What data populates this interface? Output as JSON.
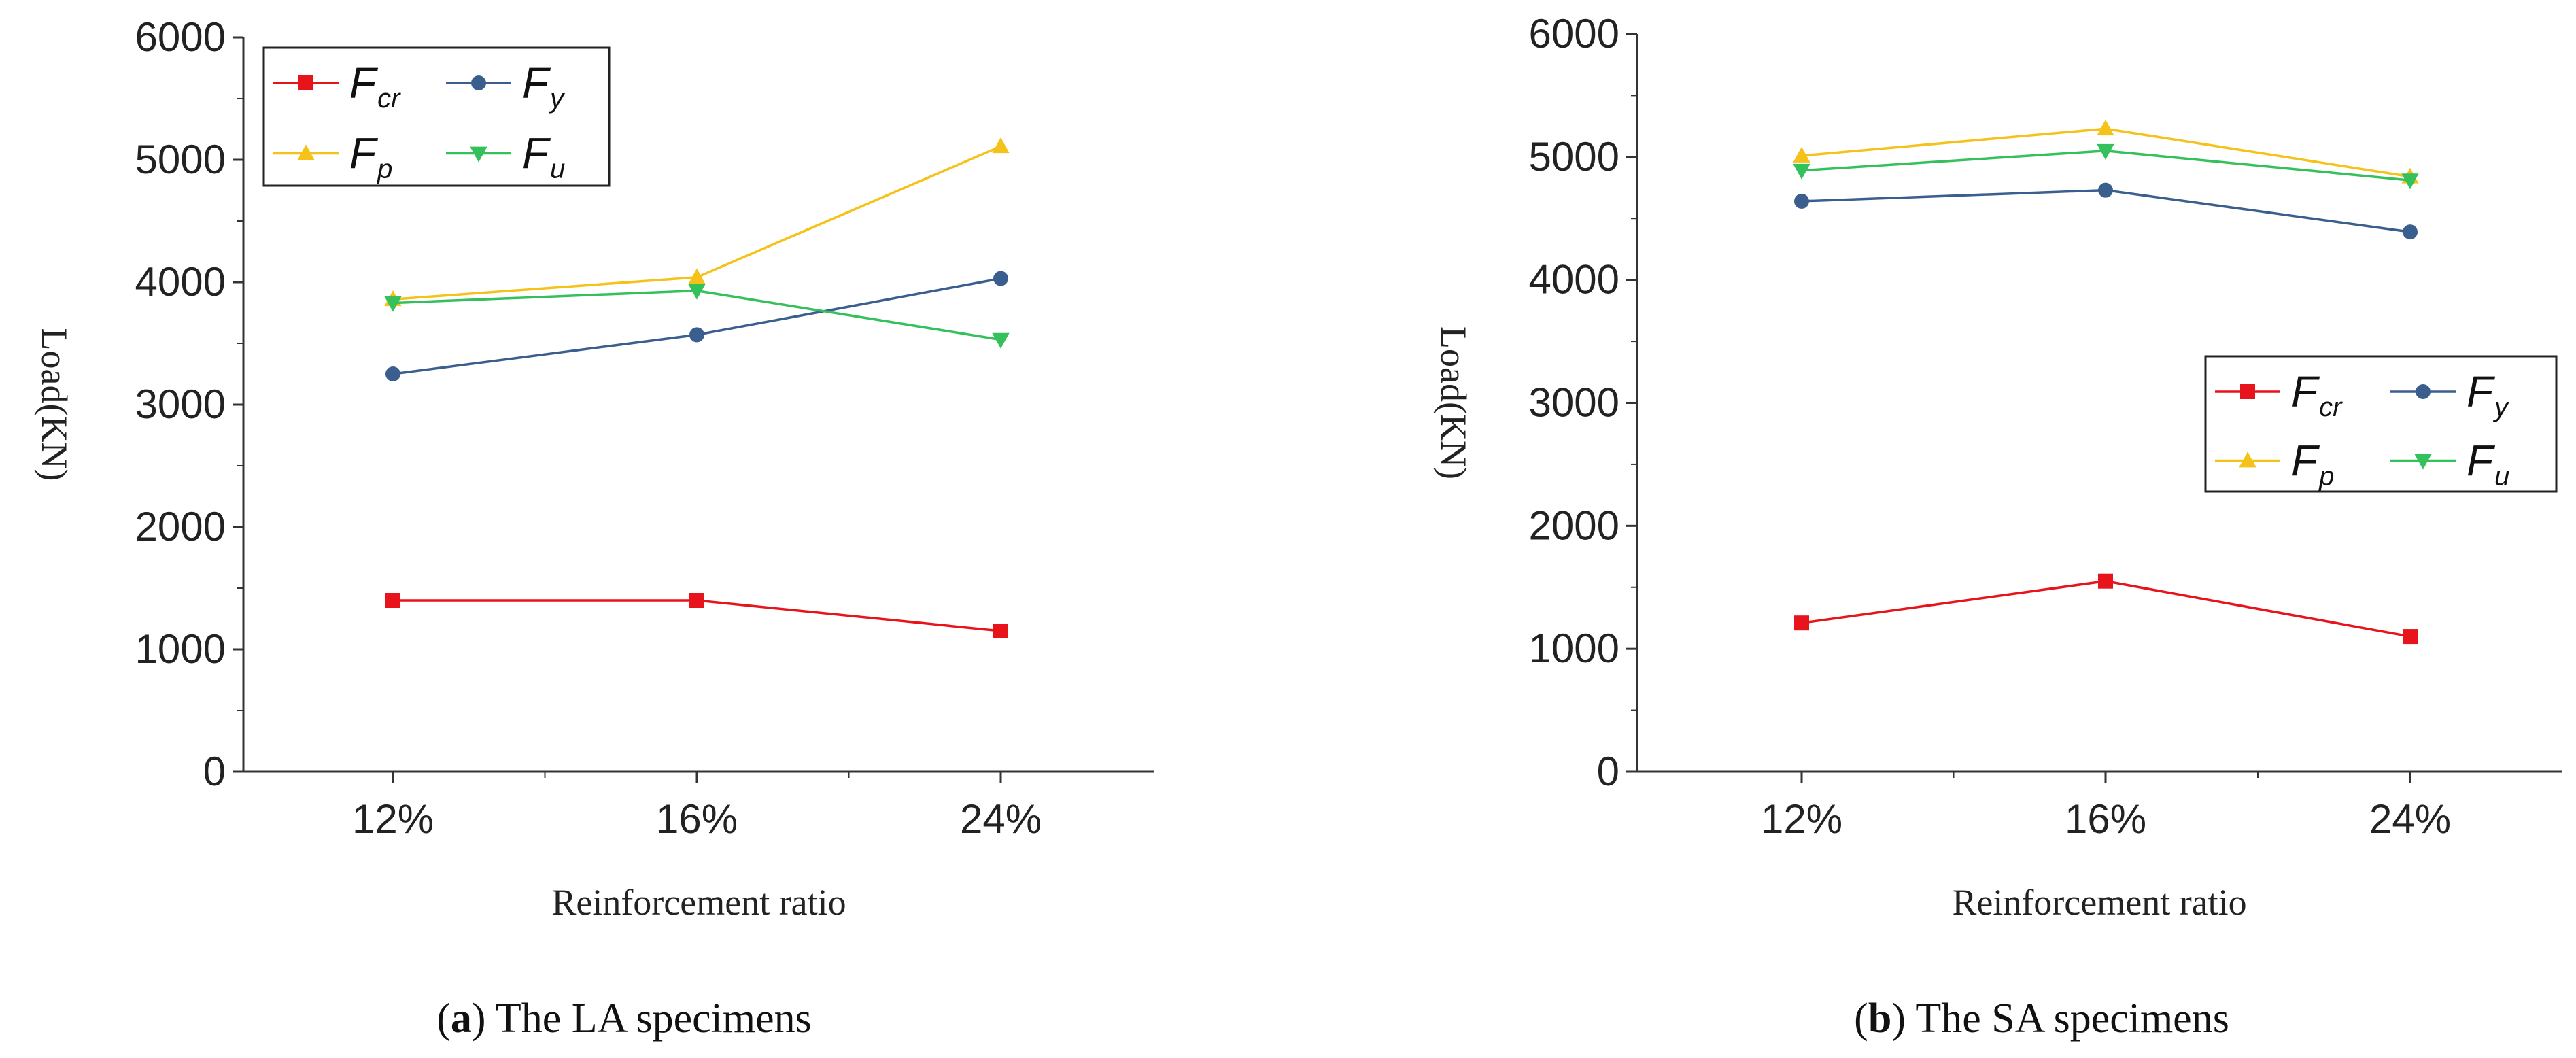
{
  "chart_data": [
    {
      "type": "line",
      "panel_letter": "a",
      "caption": ") The LA specimens",
      "categories": [
        "12%",
        "16%",
        "24%"
      ],
      "xlabel": "Reinforcement ratio",
      "ylabel": "Load(KN)",
      "ylim": [
        0,
        6000
      ],
      "yticks": [
        "0",
        "1000",
        "2000",
        "3000",
        "4000",
        "5000",
        "6000"
      ],
      "legend_position": "top-left",
      "series": [
        {
          "name": "F",
          "sub": "cr",
          "color": "#e8141c",
          "marker": "square",
          "values": [
            1400,
            1400,
            1150
          ]
        },
        {
          "name": "F",
          "sub": "y",
          "color": "#3a5f8f",
          "marker": "circle",
          "values": [
            3250,
            3570,
            4030
          ]
        },
        {
          "name": "F",
          "sub": "p",
          "color": "#f5c21a",
          "marker": "triangle-up",
          "values": [
            3860,
            4040,
            5110
          ]
        },
        {
          "name": "F",
          "sub": "u",
          "color": "#34c05a",
          "marker": "triangle-down",
          "values": [
            3830,
            3930,
            3530
          ]
        }
      ]
    },
    {
      "type": "line",
      "panel_letter": "b",
      "caption": ") The SA specimens",
      "categories": [
        "12%",
        "16%",
        "24%"
      ],
      "xlabel": "Reinforcement ratio",
      "ylabel": "Load(KN)",
      "ylim": [
        0,
        6000
      ],
      "yticks": [
        "0",
        "1000",
        "2000",
        "3000",
        "4000",
        "5000",
        "6000"
      ],
      "legend_position": "center-right",
      "series": [
        {
          "name": "F",
          "sub": "cr",
          "color": "#e8141c",
          "marker": "square",
          "values": [
            1210,
            1550,
            1100
          ]
        },
        {
          "name": "F",
          "sub": "y",
          "color": "#3a5f8f",
          "marker": "circle",
          "values": [
            4640,
            4730,
            4390
          ]
        },
        {
          "name": "F",
          "sub": "p",
          "color": "#f5c21a",
          "marker": "triangle-up",
          "values": [
            5010,
            5230,
            4840
          ]
        },
        {
          "name": "F",
          "sub": "u",
          "color": "#34c05a",
          "marker": "triangle-down",
          "values": [
            4890,
            5050,
            4810
          ]
        }
      ]
    }
  ]
}
